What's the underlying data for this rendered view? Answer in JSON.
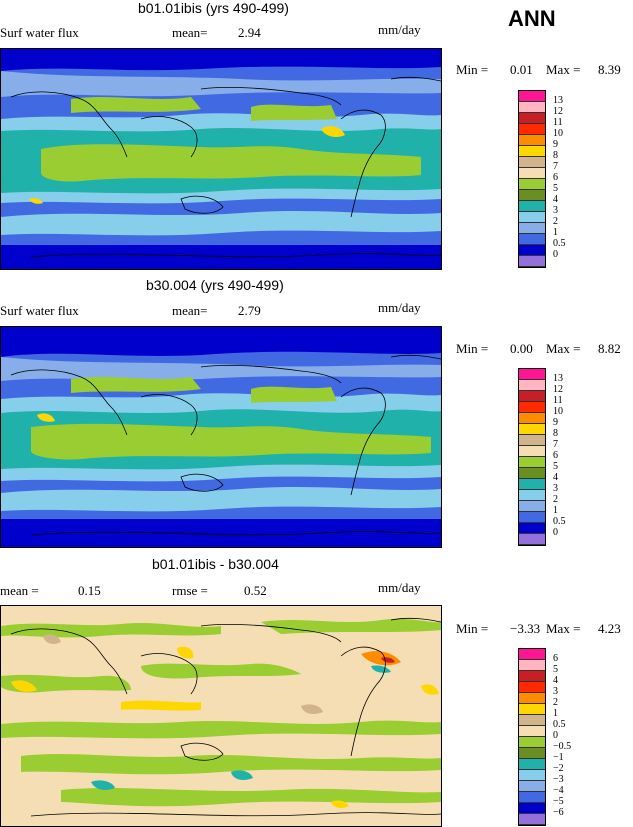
{
  "header": {
    "season": "ANN",
    "units": "mm/day"
  },
  "panels": [
    {
      "title": "b01.01ibis (yrs 490-499)",
      "left_label": "Surf water flux",
      "stat_label": "mean=",
      "stat_value": "2.94",
      "units": "mm/day",
      "min_label": "Min =",
      "min_value": "0.01",
      "max_label": "Max =",
      "max_value": "8.39",
      "colorbar": {
        "labels": [
          "13",
          "12",
          "11",
          "10",
          "9",
          "8",
          "7",
          "6",
          "5",
          "4",
          "3",
          "2",
          "1",
          "0.5",
          "0"
        ],
        "colors": [
          "#ff1493",
          "#ffb6c1",
          "#c81e28",
          "#ff2a00",
          "#ff8c00",
          "#ffd700",
          "#d2b48c",
          "#f5deb3",
          "#9acd32",
          "#6b8e23",
          "#20b2aa",
          "#87ceeb",
          "#87aee8",
          "#4169e1",
          "#0000cd",
          "#9370db"
        ]
      }
    },
    {
      "title": "b30.004 (yrs 490-499)",
      "left_label": "Surf water flux",
      "stat_label": "mean=",
      "stat_value": "2.79",
      "units": "mm/day",
      "min_label": "Min =",
      "min_value": "0.00",
      "max_label": "Max =",
      "max_value": "8.82",
      "colorbar": {
        "labels": [
          "13",
          "12",
          "11",
          "10",
          "9",
          "8",
          "7",
          "6",
          "5",
          "4",
          "3",
          "2",
          "1",
          "0.5",
          "0"
        ],
        "colors": [
          "#ff1493",
          "#ffb6c1",
          "#c81e28",
          "#ff2a00",
          "#ff8c00",
          "#ffd700",
          "#d2b48c",
          "#f5deb3",
          "#9acd32",
          "#6b8e23",
          "#20b2aa",
          "#87ceeb",
          "#87aee8",
          "#4169e1",
          "#0000cd",
          "#9370db"
        ]
      }
    },
    {
      "title": "b01.01ibis - b30.004",
      "left_label": "mean =",
      "left_value": "0.15",
      "stat_label": "rmse =",
      "stat_value": "0.52",
      "units": "mm/day",
      "min_label": "Min =",
      "min_value": "−3.33",
      "max_label": "Max =",
      "max_value": "4.23",
      "colorbar": {
        "labels": [
          "6",
          "5",
          "4",
          "3",
          "2",
          "1",
          "0.5",
          "0",
          "−0.5",
          "−1",
          "−2",
          "−3",
          "−4",
          "−5",
          "−6"
        ],
        "colors": [
          "#ff1493",
          "#ffb6c1",
          "#c81e28",
          "#ff2a00",
          "#ff8c00",
          "#ffd700",
          "#d2b48c",
          "#f5deb3",
          "#9acd32",
          "#6b8e23",
          "#20b2aa",
          "#87ceeb",
          "#87aee8",
          "#4169e1",
          "#0000cd",
          "#9370db"
        ]
      }
    }
  ]
}
